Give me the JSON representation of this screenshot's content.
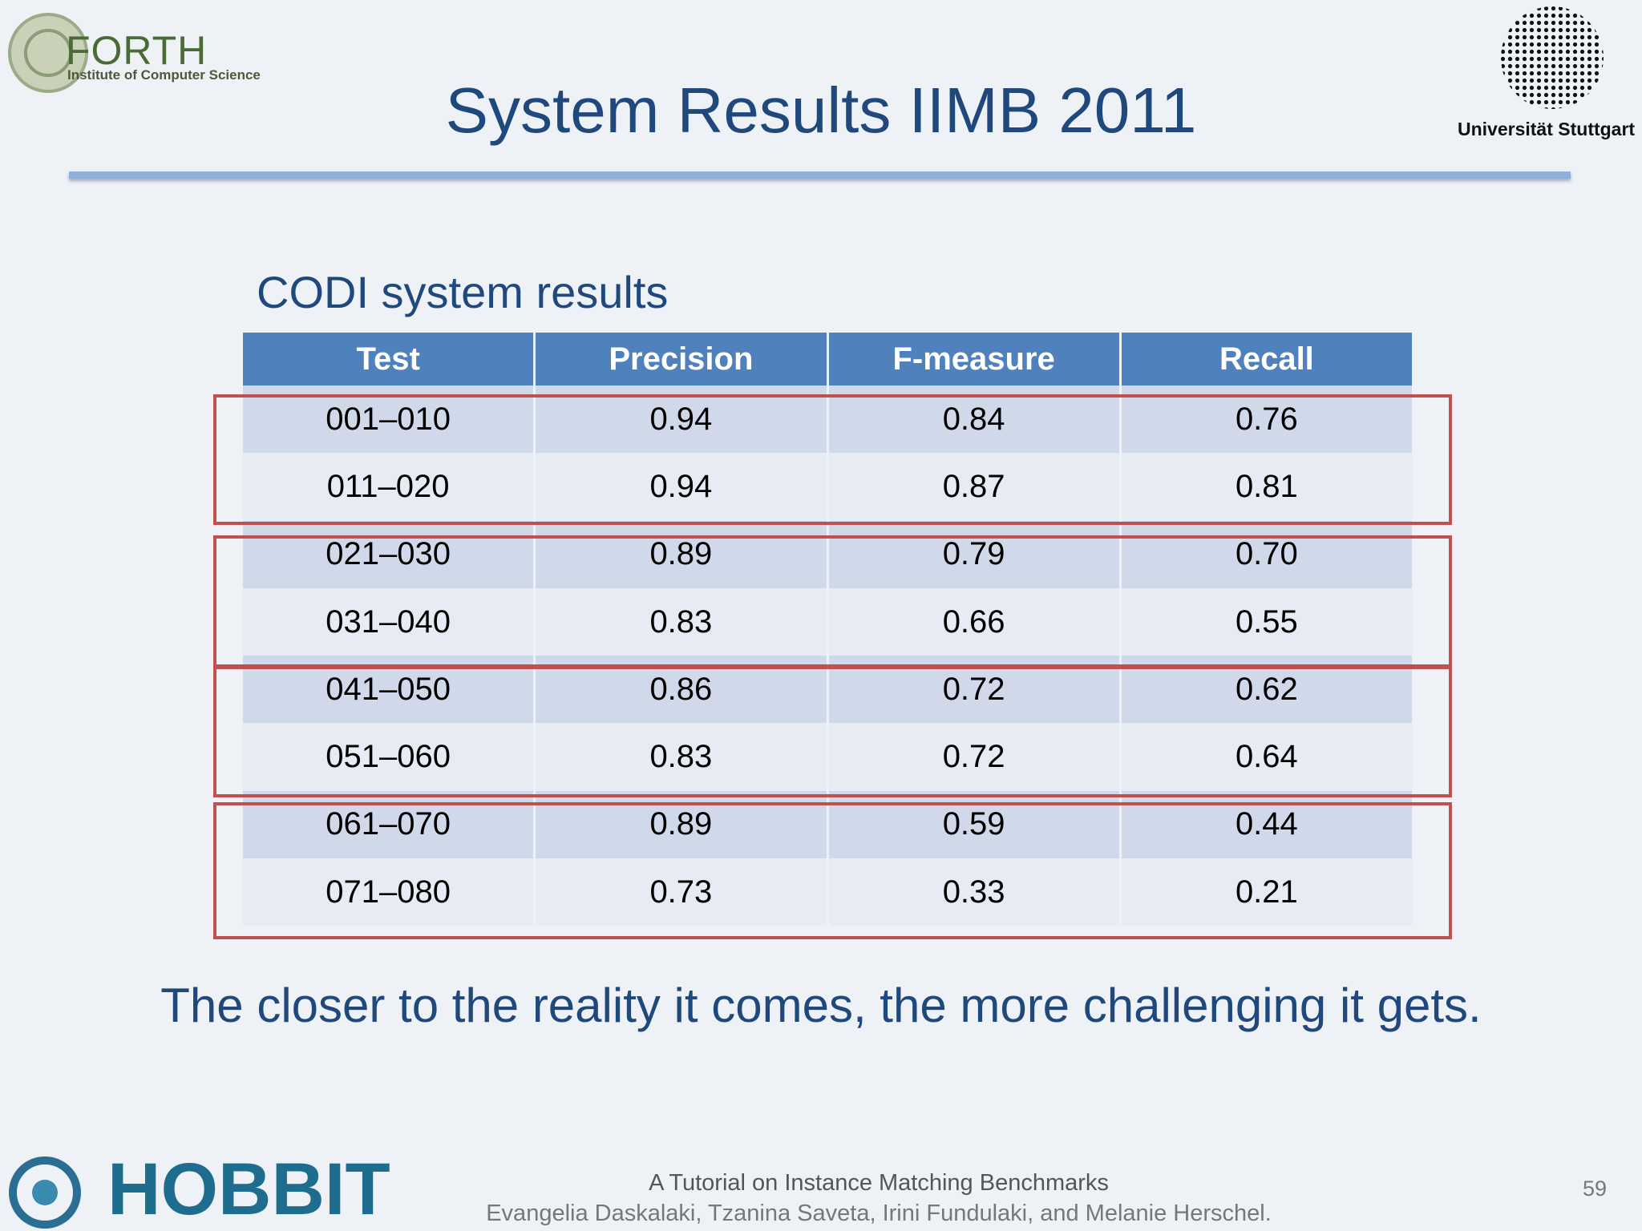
{
  "header": {
    "left_logo": {
      "name": "FORTH",
      "subtitle": "Institute of Computer Science"
    },
    "title": "System Results IIMB 2011",
    "right_logo": "Universität Stuttgart"
  },
  "subtitle": "CODI system results",
  "table": {
    "columns": [
      "Test",
      "Precision",
      "F-measure",
      "Recall"
    ],
    "rows": [
      [
        "001–010",
        "0.94",
        "0.84",
        "0.76"
      ],
      [
        "011–020",
        "0.94",
        "0.87",
        "0.81"
      ],
      [
        "021–030",
        "0.89",
        "0.79",
        "0.70"
      ],
      [
        "031–040",
        "0.83",
        "0.66",
        "0.55"
      ],
      [
        "041–050",
        "0.86",
        "0.72",
        "0.62"
      ],
      [
        "051–060",
        "0.83",
        "0.72",
        "0.64"
      ],
      [
        "061–070",
        "0.89",
        "0.59",
        "0.44"
      ],
      [
        "071–080",
        "0.73",
        "0.33",
        "0.21"
      ]
    ]
  },
  "caption": "The closer to the reality it comes, the more challenging it gets.",
  "footer": {
    "logo": "HOBBIT",
    "line1": "A Tutorial on Instance Matching Benchmarks",
    "line2": "Evangelia Daskalaki, Tzanina Saveta, Irini Fundulaki, and Melanie Herschel.",
    "page": "59"
  }
}
